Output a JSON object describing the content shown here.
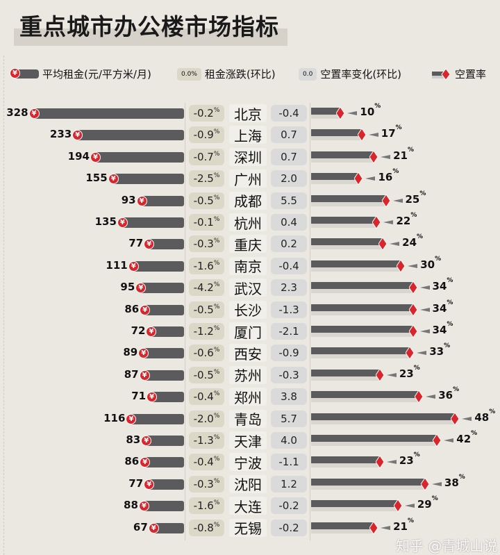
{
  "chart_data": {
    "type": "bar",
    "title": "重点城市办公楼市场指标",
    "legend": {
      "rent": "平均租金(元/平方米/月)",
      "rent_change": "租金涨跌(环比)",
      "rent_change_sample": "0.0%",
      "vacancy_change": "空置率变化(环比)",
      "vacancy_change_sample": "0.0",
      "vacancy": "空置率"
    },
    "colors": {
      "bar": "#5b5b5d",
      "accent": "#d8262c",
      "rent_change_bg": "#dcd8c8",
      "vacancy_change_bg": "#dadada",
      "background": "#ebe8e2"
    },
    "rows": [
      {
        "city": "北京",
        "rent": 328,
        "rent_change": "-0.2",
        "vacancy_change": "-0.4",
        "vacancy": 10
      },
      {
        "city": "上海",
        "rent": 233,
        "rent_change": "-0.9",
        "vacancy_change": "0.7",
        "vacancy": 17
      },
      {
        "city": "深圳",
        "rent": 194,
        "rent_change": "-0.7",
        "vacancy_change": "0.7",
        "vacancy": 21
      },
      {
        "city": "广州",
        "rent": 155,
        "rent_change": "-2.5",
        "vacancy_change": "2.0",
        "vacancy": 16
      },
      {
        "city": "成都",
        "rent": 93,
        "rent_change": "-0.5",
        "vacancy_change": "5.5",
        "vacancy": 25
      },
      {
        "city": "杭州",
        "rent": 135,
        "rent_change": "-0.1",
        "vacancy_change": "0.4",
        "vacancy": 22
      },
      {
        "city": "重庆",
        "rent": 77,
        "rent_change": "-0.3",
        "vacancy_change": "0.2",
        "vacancy": 24
      },
      {
        "city": "南京",
        "rent": 111,
        "rent_change": "-1.6",
        "vacancy_change": "-0.4",
        "vacancy": 30
      },
      {
        "city": "武汉",
        "rent": 95,
        "rent_change": "-4.2",
        "vacancy_change": "2.3",
        "vacancy": 34
      },
      {
        "city": "长沙",
        "rent": 86,
        "rent_change": "-0.5",
        "vacancy_change": "-1.3",
        "vacancy": 34
      },
      {
        "city": "厦门",
        "rent": 72,
        "rent_change": "-1.2",
        "vacancy_change": "-2.1",
        "vacancy": 34
      },
      {
        "city": "西安",
        "rent": 89,
        "rent_change": "-0.6",
        "vacancy_change": "-0.9",
        "vacancy": 33
      },
      {
        "city": "苏州",
        "rent": 87,
        "rent_change": "-0.5",
        "vacancy_change": "-0.3",
        "vacancy": 23
      },
      {
        "city": "郑州",
        "rent": 71,
        "rent_change": "-0.4",
        "vacancy_change": "3.8",
        "vacancy": 36
      },
      {
        "city": "青岛",
        "rent": 116,
        "rent_change": "-2.0",
        "vacancy_change": "5.7",
        "vacancy": 48
      },
      {
        "city": "天津",
        "rent": 83,
        "rent_change": "-1.3",
        "vacancy_change": "4.0",
        "vacancy": 42
      },
      {
        "city": "宁波",
        "rent": 86,
        "rent_change": "-0.4",
        "vacancy_change": "-1.1",
        "vacancy": 23
      },
      {
        "city": "沈阳",
        "rent": 77,
        "rent_change": "-0.3",
        "vacancy_change": "1.2",
        "vacancy": 38
      },
      {
        "city": "大连",
        "rent": 88,
        "rent_change": "-1.6",
        "vacancy_change": "-0.2",
        "vacancy": 29
      },
      {
        "city": "无锡",
        "rent": 67,
        "rent_change": "-0.8",
        "vacancy_change": "-0.2",
        "vacancy": 21
      }
    ],
    "units": {
      "percent": "%",
      "yen": "¥"
    }
  },
  "watermark": "知乎 @青城山说"
}
